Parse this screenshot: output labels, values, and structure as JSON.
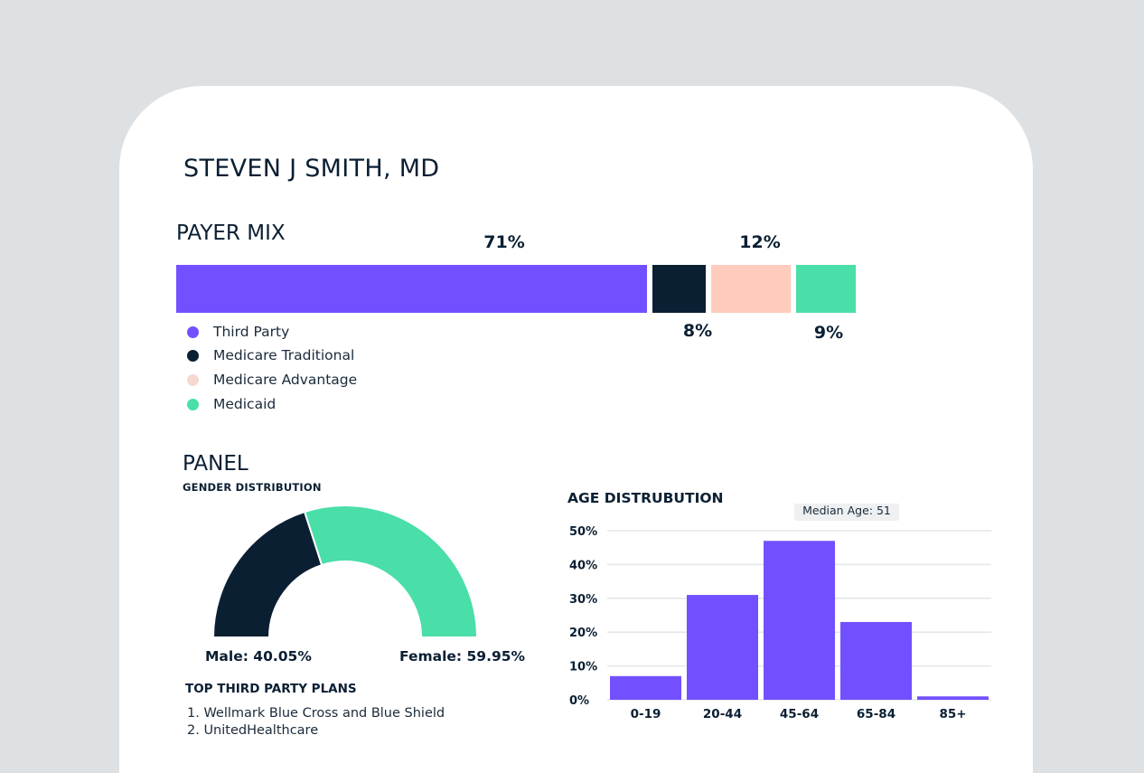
{
  "doctor_name": "STEVEN J SMITH, MD",
  "payer_mix": {
    "title": "PAYER MIX",
    "segments": [
      {
        "name": "Third Party",
        "percent": 71,
        "label": "71%",
        "color": "#7350ff"
      },
      {
        "name": "Medicare Traditional",
        "percent": 8,
        "label": "8%",
        "color": "#0b1f33"
      },
      {
        "name": "Medicare Advantage",
        "percent": 12,
        "label": "12%",
        "color": "#ffcbbc"
      },
      {
        "name": "Medicaid",
        "percent": 9,
        "label": "9%",
        "color": "#4adea8"
      }
    ],
    "legend": [
      {
        "label": "Third Party",
        "color": "#7350ff"
      },
      {
        "label": "Medicare Traditional",
        "color": "#0b1f33"
      },
      {
        "label": "Medicare Advantage",
        "color": "#f5d9d1"
      },
      {
        "label": "Medicaid",
        "color": "#4adea8"
      }
    ]
  },
  "panel": {
    "title": "PANEL",
    "gender_title": "GENDER DISTRIBUTION",
    "gender": {
      "male": {
        "value": 40.05,
        "label": "Male: 40.05%",
        "color": "#0b1f33"
      },
      "female": {
        "value": 59.95,
        "label": "Female: 59.95%",
        "color": "#4adea8"
      }
    },
    "plans_title": "TOP THIRD PARTY PLANS",
    "plans": [
      "1. Wellmark Blue Cross and Blue Shield",
      "2. UnitedHealthcare"
    ]
  },
  "chart_data": {
    "type": "bar",
    "title": "AGE DISTRUBUTION",
    "categories": [
      "0-19",
      "20-44",
      "45-64",
      "65-84",
      "85+"
    ],
    "values": [
      7,
      31,
      47,
      23,
      1
    ],
    "ylim": [
      0,
      50
    ],
    "yticks": [
      0,
      10,
      20,
      30,
      40,
      50
    ],
    "ytick_labels": [
      "0%",
      "10%",
      "20%",
      "30%",
      "40%",
      "50%"
    ],
    "grid": true,
    "bar_color": "#7350ff",
    "annotation": "Median Age: 51"
  }
}
